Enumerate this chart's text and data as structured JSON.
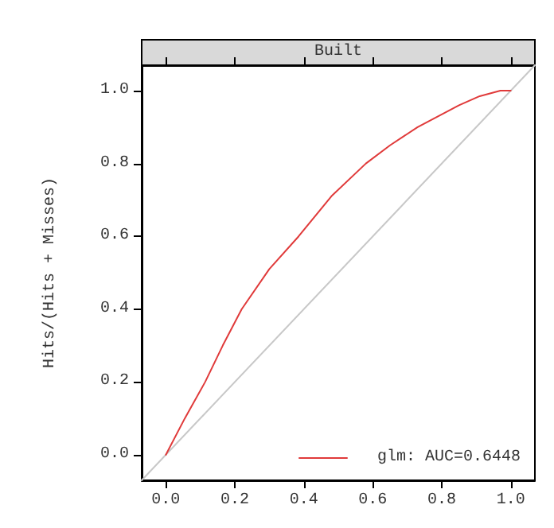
{
  "chart_data": {
    "type": "line",
    "title": "Built",
    "ylabel": "Hits/(Hits + Misses)",
    "xlim": [
      -0.07,
      1.07
    ],
    "ylim": [
      -0.07,
      1.07
    ],
    "xticks": [
      {
        "value": 0,
        "label": "0.0"
      },
      0.2,
      0.4,
      0.6,
      0.8,
      {
        "value": 1,
        "label": "1.0"
      }
    ],
    "yticks": [
      {
        "value": 0,
        "label": "0.0"
      },
      0.2,
      0.4,
      0.6,
      0.8,
      {
        "value": 1,
        "label": "1.0"
      }
    ],
    "series": [
      {
        "name": "glm: AUC=0.6448",
        "color": "#e03a3a",
        "x": [
          0,
          0.055,
          0.114,
          0.165,
          0.22,
          0.3,
          0.385,
          0.48,
          0.58,
          0.65,
          0.73,
          0.79,
          0.85,
          0.91,
          0.97,
          1
        ],
        "values": [
          0,
          0.1,
          0.2,
          0.3,
          0.4,
          0.51,
          0.6,
          0.71,
          0.8,
          0.85,
          0.9,
          0.93,
          0.96,
          0.985,
          1,
          1
        ]
      },
      {
        "color": "#c8c8c8",
        "x": [
          -0.07,
          1.07
        ],
        "values": [
          -0.07,
          1.07
        ]
      }
    ],
    "grid": false,
    "legend": "bottom right",
    "marker": "none",
    "line_style": "solid"
  }
}
